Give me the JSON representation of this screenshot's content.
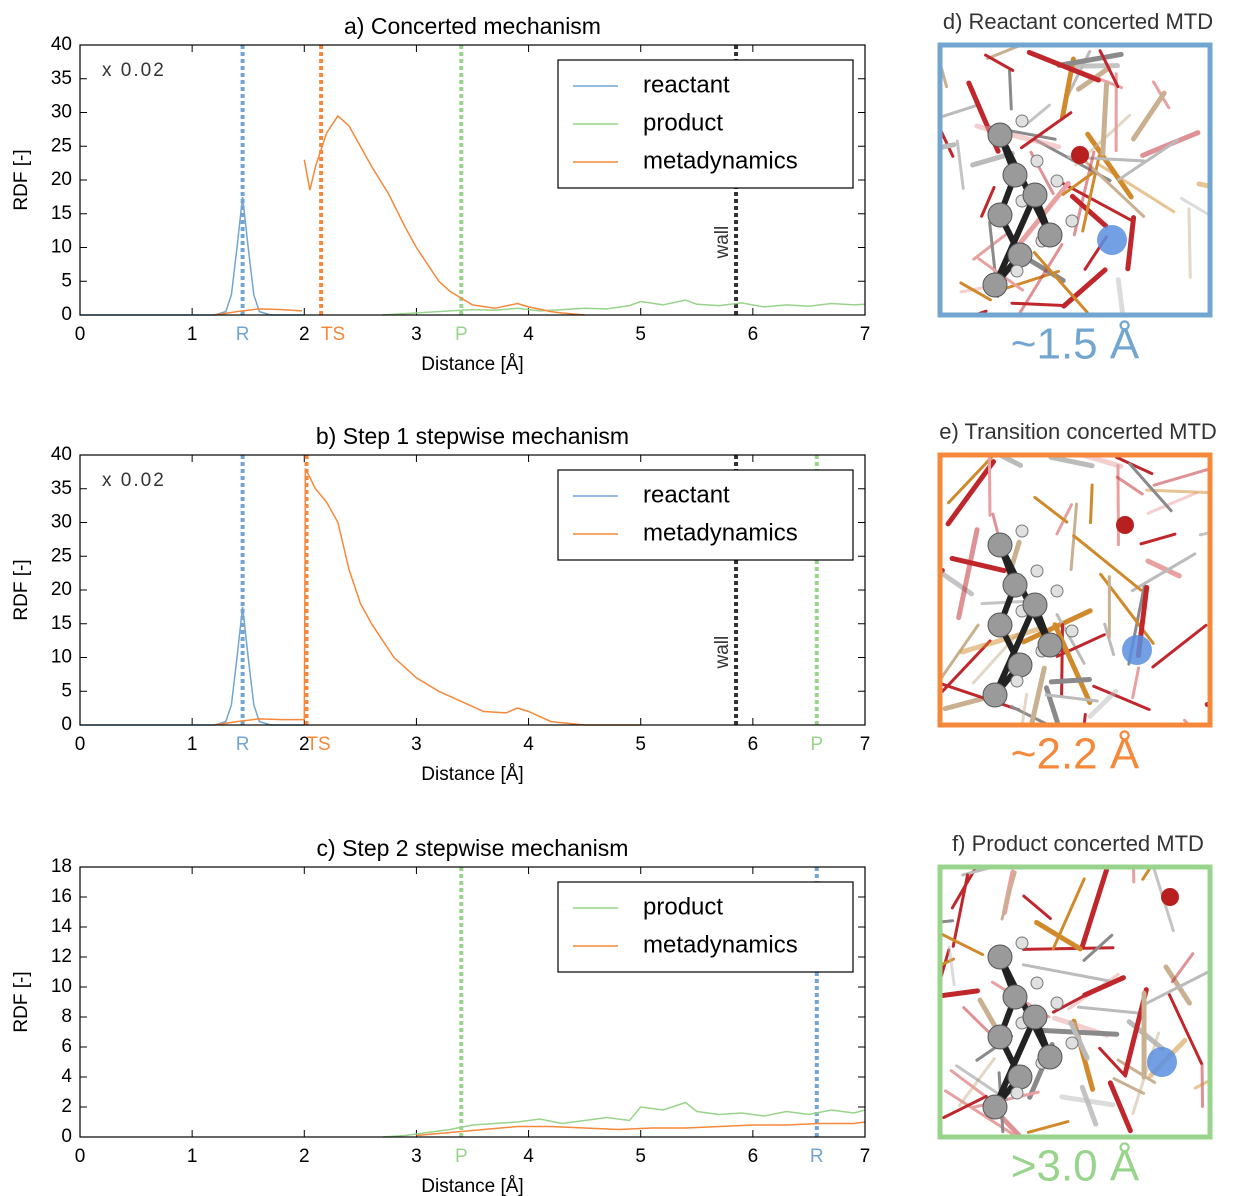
{
  "chart_data": [
    {
      "type": "line",
      "title": "a) Concerted mechanism",
      "xlabel": "Distance [Å]",
      "ylabel": "RDF [-]",
      "annotation": "x 0.02",
      "xlim": [
        0,
        7
      ],
      "ylim": [
        0,
        40
      ],
      "xticks": [
        0,
        1,
        2,
        3,
        4,
        5,
        6,
        7
      ],
      "yticks": [
        0,
        5,
        10,
        15,
        20,
        25,
        30,
        35,
        40
      ],
      "legend": "upper right",
      "series": [
        {
          "name": "reactant",
          "color": "#72a6d1",
          "x": [
            0,
            1.2,
            1.3,
            1.35,
            1.4,
            1.45,
            1.5,
            1.55,
            1.6,
            1.7,
            2.0
          ],
          "values": [
            0,
            0,
            0.5,
            3,
            10,
            17.5,
            10,
            3,
            0.5,
            0,
            0
          ]
        },
        {
          "name": "product",
          "color": "#98d48b",
          "x": [
            2.7,
            2.9,
            3.1,
            3.3,
            3.5,
            3.7,
            3.9,
            4.1,
            4.3,
            4.5,
            4.7,
            4.9,
            5.0,
            5.2,
            5.4,
            5.5,
            5.7,
            5.9,
            6.1,
            6.3,
            6.5,
            6.7,
            6.9,
            7.0
          ],
          "values": [
            0,
            0.2,
            0.4,
            0.6,
            0.8,
            0.7,
            1.0,
            0.6,
            0.8,
            1.0,
            0.9,
            1.4,
            2.0,
            1.5,
            2.2,
            1.6,
            1.4,
            1.8,
            1.2,
            1.5,
            1.3,
            1.7,
            1.5,
            1.6
          ]
        },
        {
          "name": "metadynamics",
          "color": "#f5883b",
          "x": [
            1.2,
            1.4,
            1.6,
            1.8,
            1.98,
            1.99,
            2.0,
            2.05,
            2.1,
            2.2,
            2.3,
            2.4,
            2.5,
            2.6,
            2.75,
            2.9,
            3.0,
            3.1,
            3.2,
            3.3,
            3.4,
            3.5,
            3.7,
            3.9,
            4.0,
            4.2,
            4.3,
            4.5
          ],
          "values": [
            0,
            0.5,
            0.9,
            0.8,
            0.6,
            null,
            23,
            18.5,
            22,
            27,
            29.5,
            28,
            25,
            22,
            18,
            13,
            10,
            7.5,
            5,
            3.5,
            2.5,
            1.5,
            1,
            1.7,
            1.2,
            0.5,
            0.3,
            0
          ]
        }
      ],
      "markers": [
        {
          "label": "R",
          "x": 1.45,
          "color": "#72a6d1"
        },
        {
          "label": "TS",
          "x": 2.15,
          "color": "#f5883b"
        },
        {
          "label": "P",
          "x": 3.4,
          "color": "#98d48b"
        },
        {
          "label": "wall",
          "x": 5.85,
          "color": "#333333",
          "label_inside": true
        }
      ]
    },
    {
      "type": "line",
      "title": "b) Step 1 stepwise mechanism",
      "xlabel": "Distance [Å]",
      "ylabel": "RDF [-]",
      "annotation": "x 0.02",
      "xlim": [
        0,
        7
      ],
      "ylim": [
        0,
        40
      ],
      "xticks": [
        0,
        1,
        2,
        3,
        4,
        5,
        6,
        7
      ],
      "yticks": [
        0,
        5,
        10,
        15,
        20,
        25,
        30,
        35,
        40
      ],
      "legend": "upper right",
      "series": [
        {
          "name": "reactant",
          "color": "#72a6d1",
          "x": [
            0,
            1.2,
            1.3,
            1.35,
            1.4,
            1.45,
            1.5,
            1.55,
            1.6,
            1.7,
            2.0
          ],
          "values": [
            0,
            0,
            0.5,
            3,
            10,
            17.5,
            10,
            3,
            0.5,
            0,
            0
          ]
        },
        {
          "name": "metadynamics",
          "color": "#f5883b",
          "x": [
            1.2,
            1.4,
            1.6,
            1.8,
            2.0,
            2.01,
            2.1,
            2.2,
            2.3,
            2.4,
            2.5,
            2.6,
            2.8,
            3.0,
            3.2,
            3.4,
            3.6,
            3.8,
            3.9,
            4.0,
            4.2,
            4.5,
            5.0
          ],
          "values": [
            0,
            0.5,
            0.9,
            0.8,
            0.8,
            38,
            35,
            33,
            30,
            23,
            18,
            15,
            10,
            7,
            5,
            3.5,
            2,
            1.8,
            2.5,
            2,
            0.5,
            0,
            0
          ]
        }
      ],
      "markers": [
        {
          "label": "R",
          "x": 1.45,
          "color": "#72a6d1"
        },
        {
          "label": "TS",
          "x": 2.02,
          "color": "#f5883b"
        },
        {
          "label": "wall",
          "x": 5.85,
          "color": "#333333",
          "label_inside": true
        },
        {
          "label": "P",
          "x": 6.57,
          "color": "#98d48b"
        }
      ]
    },
    {
      "type": "line",
      "title": "c) Step 2 stepwise mechanism",
      "xlabel": "Distance [Å]",
      "ylabel": "RDF [-]",
      "xlim": [
        0,
        7
      ],
      "ylim": [
        0,
        18
      ],
      "xticks": [
        0,
        1,
        2,
        3,
        4,
        5,
        6,
        7
      ],
      "yticks": [
        0,
        2,
        4,
        6,
        8,
        10,
        12,
        14,
        16,
        18
      ],
      "legend": "upper right",
      "series": [
        {
          "name": "product",
          "color": "#98d48b",
          "x": [
            2.7,
            2.9,
            3.1,
            3.3,
            3.5,
            3.7,
            3.9,
            4.1,
            4.3,
            4.5,
            4.7,
            4.9,
            5.0,
            5.2,
            5.4,
            5.5,
            5.7,
            5.9,
            6.1,
            6.3,
            6.5,
            6.7,
            6.9,
            7.0
          ],
          "values": [
            0,
            0.1,
            0.3,
            0.5,
            0.8,
            0.9,
            1.0,
            1.2,
            0.9,
            1.1,
            1.3,
            1.1,
            2.0,
            1.8,
            2.3,
            1.7,
            1.5,
            1.6,
            1.4,
            1.7,
            1.5,
            1.8,
            1.6,
            1.8
          ]
        },
        {
          "name": "metadynamics",
          "color": "#f5883b",
          "x": [
            3.0,
            3.3,
            3.6,
            3.9,
            4.2,
            4.5,
            4.8,
            5.1,
            5.4,
            5.7,
            6.0,
            6.3,
            6.6,
            6.9,
            7.0
          ],
          "values": [
            0.1,
            0.3,
            0.5,
            0.7,
            0.7,
            0.6,
            0.5,
            0.6,
            0.6,
            0.7,
            0.8,
            0.8,
            0.9,
            0.9,
            1.0
          ]
        }
      ],
      "markers": [
        {
          "label": "P",
          "x": 3.4,
          "color": "#98d48b"
        },
        {
          "label": "R",
          "x": 6.57,
          "color": "#72a6d1"
        }
      ]
    }
  ],
  "panels": [
    {
      "title": "d) Reactant concerted MTD",
      "label": "~1.5 Å",
      "color": "#72a6d1"
    },
    {
      "title": "e) Transition concerted MTD",
      "label": "~2.2 Å",
      "color": "#f5883b"
    },
    {
      "title": "f) Product concerted MTD",
      "label": ">3.0 Å",
      "color": "#98d48b"
    }
  ]
}
